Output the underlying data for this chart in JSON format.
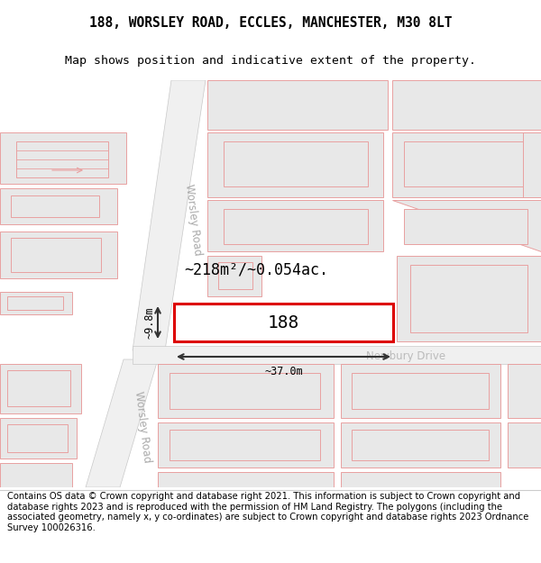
{
  "title_line1": "188, WORSLEY ROAD, ECCLES, MANCHESTER, M30 8LT",
  "title_line2": "Map shows position and indicative extent of the property.",
  "footer_text": "Contains OS data © Crown copyright and database right 2021. This information is subject to Crown copyright and database rights 2023 and is reproduced with the permission of HM Land Registry. The polygons (including the associated geometry, namely x, y co-ordinates) are subject to Crown copyright and database rights 2023 Ordnance Survey 100026316.",
  "property_label": "188",
  "area_label": "~218m²/~0.054ac.",
  "width_label": "~37.0m",
  "height_label": "~9.8m",
  "road1_label": "Worsley Road",
  "road2_label": "Worsley Road",
  "road3_label": "Newbury Drive",
  "bg_color": "#ffffff",
  "title_fontsize": 10.5,
  "subtitle_fontsize": 9.5,
  "footer_fontsize": 7.2,
  "prop_outline_color": "#dd0000",
  "building_fill": "#e8e8e8",
  "building_edge": "#e8a0a0",
  "road_fill": "#f0f0f0",
  "road_edge": "#c8c8c8",
  "map_bg": "#ffffff"
}
